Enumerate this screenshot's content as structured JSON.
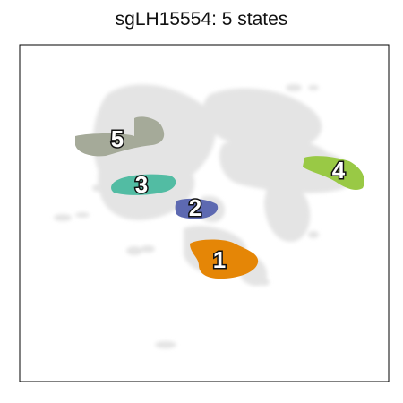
{
  "title": "sgLH15554: 5 states",
  "chart_data": {
    "type": "scatter",
    "title": "sgLH15554: 5 states",
    "xlabel": "",
    "ylabel": "",
    "grid": false,
    "background_color": "#e4e4e4",
    "states": [
      {
        "label": "1",
        "color": "#e58606"
      },
      {
        "label": "2",
        "color": "#5d69b1"
      },
      {
        "label": "3",
        "color": "#52bca3"
      },
      {
        "label": "4",
        "color": "#99c945"
      },
      {
        "label": "5",
        "color": "#a5aa99"
      }
    ]
  }
}
